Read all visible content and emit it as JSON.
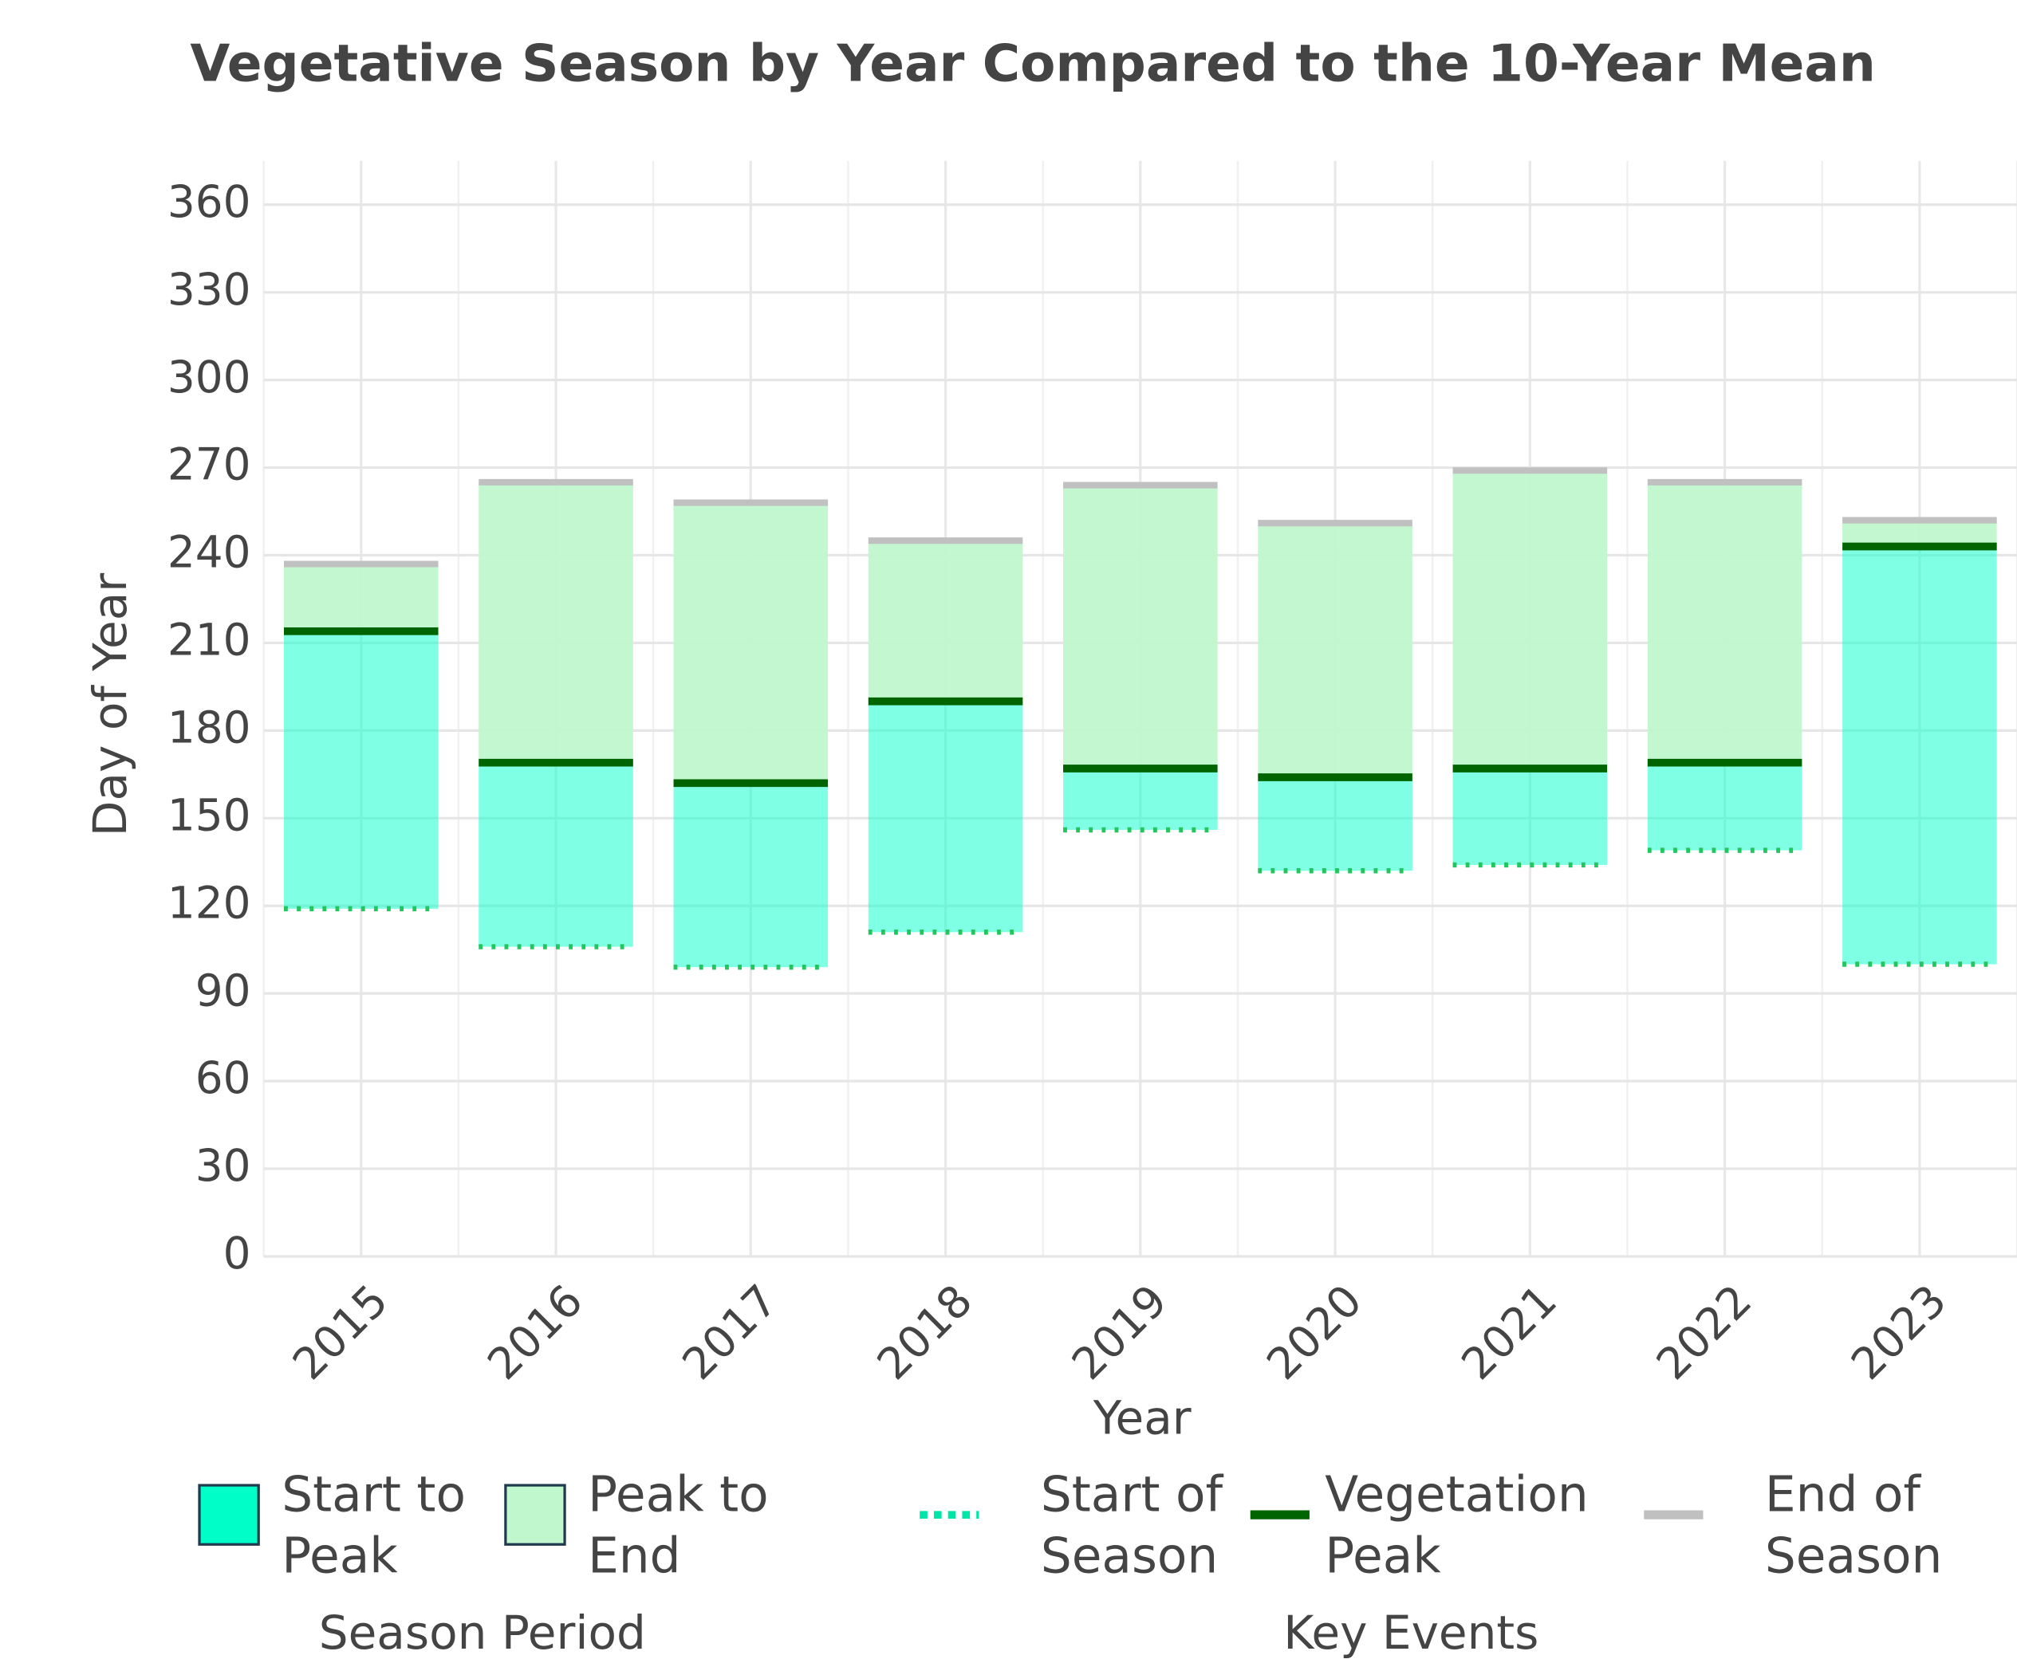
{
  "chart_data": {
    "type": "range_bar",
    "title": "Vegetative Season by Year Compared to the 10-Year Mean",
    "x_label": "Year",
    "y_label": "Day of Year",
    "categories": [
      "2015",
      "2016",
      "2017",
      "2018",
      "2019",
      "2020",
      "2021",
      "2022",
      "2023"
    ],
    "series": [
      {
        "name": "Start of Season",
        "color": "#00e6a8",
        "values": [
          119,
          106,
          99,
          111,
          146,
          132,
          134,
          139,
          100
        ]
      },
      {
        "name": "Vegetation Peak",
        "color": "#006400",
        "values": [
          214,
          169,
          162,
          190,
          167,
          164,
          167,
          169,
          243
        ]
      },
      {
        "name": "End of Season",
        "color": "#c0c0c0",
        "values": [
          237,
          265,
          258,
          245,
          264,
          251,
          269,
          265,
          252
        ]
      }
    ],
    "periods": [
      {
        "name": "Start to Peak",
        "color": "#00ffc8"
      },
      {
        "name": "Peak to End",
        "color": "#c0f7cc"
      }
    ],
    "legend_titles": [
      "Season Period",
      "Key Events"
    ],
    "ylim": [
      0,
      375
    ],
    "yticks": [
      0,
      30,
      60,
      90,
      120,
      150,
      180,
      210,
      240,
      270,
      300,
      330,
      360
    ],
    "grid": true
  }
}
